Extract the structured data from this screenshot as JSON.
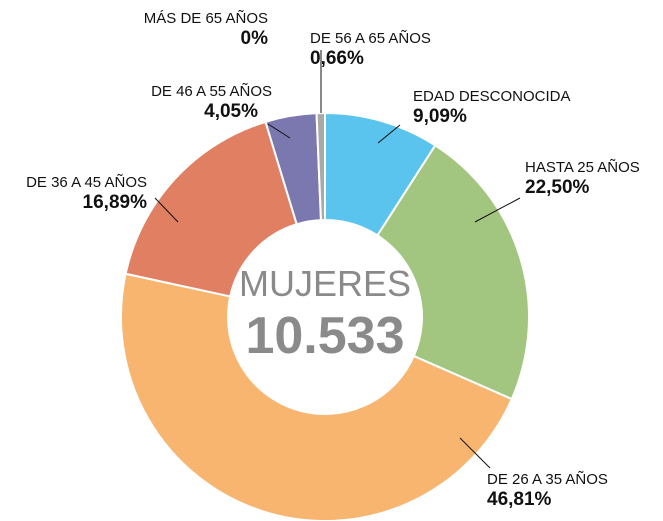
{
  "chart_data": {
    "type": "donut",
    "categories": [
      "EDAD DESCONOCIDA",
      "HASTA 25 AÑOS",
      "DE 26 A 35 AÑOS",
      "DE 36 A 45 AÑOS",
      "DE 46 A 55 AÑOS",
      "DE 56 A 65 AÑOS",
      "MÁS DE 65 AÑOS"
    ],
    "values": [
      9.09,
      22.5,
      46.81,
      16.89,
      4.05,
      0.66,
      0
    ],
    "value_labels": [
      "9,09%",
      "22,50%",
      "46,81%",
      "16,89%",
      "4,05%",
      "0,66%",
      "0%"
    ],
    "colors": [
      "#5bc4ee",
      "#a2c57f",
      "#f7b56f",
      "#e07f62",
      "#7b78b0",
      "#a9a9a9",
      "#d0d0d0"
    ],
    "center_label": "MUJERES",
    "total": {
      "value": 10533,
      "label": "10.533"
    }
  }
}
